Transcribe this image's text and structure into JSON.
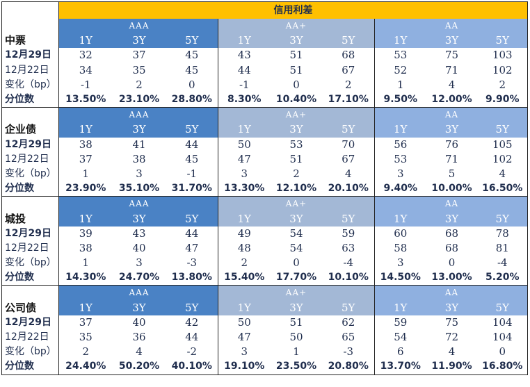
{
  "title": "信用利差",
  "groups": [
    "AAA",
    "AA+",
    "AA"
  ],
  "tenors": [
    "1Y",
    "3Y",
    "5Y"
  ],
  "sections": [
    {
      "name": "中票",
      "rows": [
        {
          "label": "12月29日",
          "values": [
            "32",
            "37",
            "45",
            "43",
            "51",
            "68",
            "53",
            "75",
            "103"
          ]
        },
        {
          "label": "12月22日",
          "values": [
            "34",
            "35",
            "45",
            "44",
            "51",
            "67",
            "52",
            "71",
            "102"
          ]
        },
        {
          "label": "变化（bp）",
          "values": [
            "-1",
            "2",
            "0",
            "-1",
            "0",
            "2",
            "1",
            "4",
            "2"
          ]
        },
        {
          "label": "分位数",
          "values": [
            "13.50%",
            "23.10%",
            "28.80%",
            "8.30%",
            "10.40%",
            "17.10%",
            "9.50%",
            "12.00%",
            "9.90%"
          ]
        }
      ]
    },
    {
      "name": "企业债",
      "rows": [
        {
          "label": "12月29日",
          "values": [
            "38",
            "41",
            "44",
            "50",
            "53",
            "70",
            "56",
            "76",
            "105"
          ]
        },
        {
          "label": "12月22日",
          "values": [
            "37",
            "38",
            "45",
            "47",
            "51",
            "67",
            "53",
            "71",
            "102"
          ]
        },
        {
          "label": "变化（bp）",
          "values": [
            "1",
            "3",
            "-1",
            "3",
            "2",
            "4",
            "3",
            "5",
            "4"
          ]
        },
        {
          "label": "分位数",
          "values": [
            "23.90%",
            "35.10%",
            "31.70%",
            "13.30%",
            "12.10%",
            "20.10%",
            "9.40%",
            "10.00%",
            "16.50%"
          ]
        }
      ]
    },
    {
      "name": "城投",
      "rows": [
        {
          "label": "12月29日",
          "values": [
            "39",
            "43",
            "44",
            "49",
            "54",
            "59",
            "60",
            "68",
            "78"
          ]
        },
        {
          "label": "12月22日",
          "values": [
            "38",
            "40",
            "47",
            "48",
            "54",
            "63",
            "58",
            "68",
            "81"
          ]
        },
        {
          "label": "变化（bp）",
          "values": [
            "1",
            "3",
            "-3",
            "2",
            "0",
            "-4",
            "3",
            "0",
            "-4"
          ]
        },
        {
          "label": "分位数",
          "values": [
            "14.30%",
            "24.70%",
            "13.80%",
            "15.40%",
            "17.70%",
            "10.10%",
            "14.50%",
            "13.00%",
            "5.20%"
          ]
        }
      ]
    },
    {
      "name": "公司债",
      "rows": [
        {
          "label": "12月29日",
          "values": [
            "37",
            "40",
            "42",
            "50",
            "51",
            "62",
            "59",
            "75",
            "104"
          ]
        },
        {
          "label": "12月22日",
          "values": [
            "35",
            "36",
            "44",
            "47",
            "50",
            "65",
            "54",
            "72",
            "104"
          ]
        },
        {
          "label": "变化（bp）",
          "values": [
            "2",
            "4",
            "-2",
            "3",
            "1",
            "-3",
            "6",
            "4",
            "0"
          ]
        },
        {
          "label": "分位数",
          "values": [
            "24.40%",
            "50.20%",
            "40.10%",
            "19.10%",
            "23.50%",
            "20.80%",
            "13.70%",
            "11.90%",
            "16.80%"
          ]
        }
      ]
    }
  ]
}
